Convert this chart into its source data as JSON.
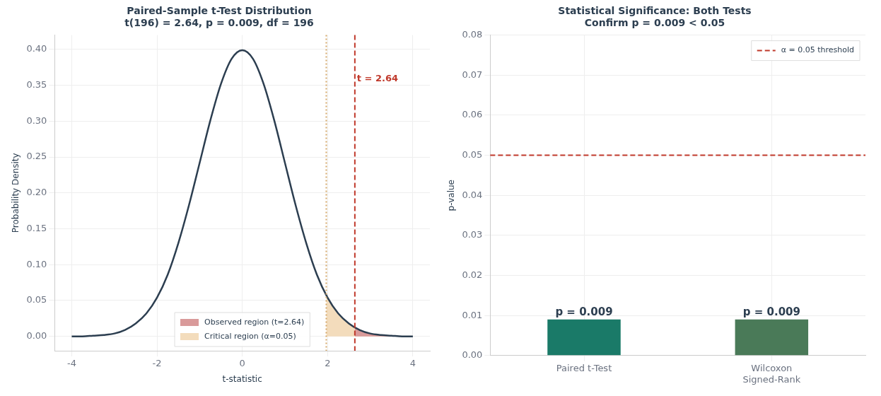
{
  "chart_data": [
    {
      "type": "line",
      "title": "Paired-Sample t-Test Distribution",
      "subtitle": "t(196) = 2.64, p = 0.009, df = 196",
      "xlabel": "t-statistic",
      "ylabel": "Probability Density",
      "xlim": [
        -4.4,
        4.4
      ],
      "xticks": [
        -4,
        -2,
        0,
        2,
        4
      ],
      "ylim": [
        -0.02,
        0.42
      ],
      "yticks": [
        {
          "value": 0,
          "label": "0.00"
        },
        {
          "value": 0.05,
          "label": "0.05"
        },
        {
          "value": 0.1,
          "label": "0.10"
        },
        {
          "value": 0.15,
          "label": "0.15"
        },
        {
          "value": 0.2,
          "label": "0.20"
        },
        {
          "value": 0.25,
          "label": "0.25"
        },
        {
          "value": 0.3,
          "label": "0.30"
        },
        {
          "value": 0.35,
          "label": "0.35"
        },
        {
          "value": 0.4,
          "label": "0.40"
        }
      ],
      "series": [
        {
          "type": "area",
          "name": "Critical region (α=0.05)",
          "color": "#f3dcbc",
          "x": [
            1.97,
            2,
            2.25,
            2.5,
            2.75,
            3,
            3.25,
            3.5,
            3.75,
            4
          ],
          "values": [
            0.057,
            0.054,
            0.032,
            0.018,
            0.009,
            0.004,
            0.002,
            0.001,
            0,
            0
          ]
        },
        {
          "type": "area",
          "name": "Observed region (t=2.64)",
          "color": "#d99a9a",
          "x": [
            2.64,
            2.75,
            3,
            3.25,
            3.5,
            3.75,
            4
          ],
          "values": [
            0.012,
            0.009,
            0.004,
            0.002,
            0.001,
            0,
            0
          ]
        },
        {
          "type": "line",
          "color": "#2c3e50",
          "x": [
            -4,
            -3.75,
            -3.5,
            -3.25,
            -3,
            -2.75,
            -2.5,
            -2.25,
            -2,
            -1.75,
            -1.5,
            -1.25,
            -1,
            -0.75,
            -0.5,
            -0.25,
            0,
            0.25,
            0.5,
            0.75,
            1,
            1.25,
            1.5,
            1.75,
            2,
            2.25,
            2.5,
            2.75,
            3,
            3.25,
            3.5,
            3.75,
            4
          ],
          "values": [
            0,
            0,
            0.001,
            0.002,
            0.004,
            0.009,
            0.018,
            0.032,
            0.054,
            0.086,
            0.13,
            0.183,
            0.242,
            0.301,
            0.352,
            0.387,
            0.399,
            0.387,
            0.352,
            0.301,
            0.242,
            0.183,
            0.13,
            0.086,
            0.054,
            0.032,
            0.018,
            0.009,
            0.004,
            0.002,
            0.001,
            0,
            0
          ]
        }
      ],
      "ref_lines": [
        {
          "axis": "x",
          "value": 1.97,
          "color": "#d4a86a",
          "line_style": "dotted"
        },
        {
          "axis": "x",
          "value": 2.64,
          "label": "t = 2.64",
          "color": "#c0392b",
          "line_style": "dashed"
        }
      ],
      "grid": true,
      "legend": "bottom",
      "marker": "none",
      "line_style": "solid"
    },
    {
      "type": "bar",
      "title": "Statistical Significance: Both Tests Confirm p = 0.009 < 0.05",
      "ylabel": "p-value",
      "categories": [
        "Paired t-Test",
        "Wilcoxon Signed-Rank"
      ],
      "values": [
        0.009,
        0.009
      ],
      "colors": [
        "#1a7a68",
        "#4a7a58"
      ],
      "value_labels": [
        "p = 0.009",
        "p = 0.009"
      ],
      "ylim": [
        0,
        0.08
      ],
      "yticks": [
        {
          "value": 0,
          "label": "0.00"
        },
        {
          "value": 0.01,
          "label": "0.01"
        },
        {
          "value": 0.02,
          "label": "0.02"
        },
        {
          "value": 0.03,
          "label": "0.03"
        },
        {
          "value": 0.04,
          "label": "0.04"
        },
        {
          "value": 0.05,
          "label": "0.05"
        },
        {
          "value": 0.06,
          "label": "0.06"
        },
        {
          "value": 0.07,
          "label": "0.07"
        },
        {
          "value": 0.08,
          "label": "0.08"
        }
      ],
      "ref_lines": [
        {
          "axis": "y",
          "value": 0.05,
          "label": "α = 0.05 threshold",
          "color": "#c0392b",
          "line_style": "dashed"
        }
      ],
      "grid": true,
      "legend": "top right"
    }
  ]
}
